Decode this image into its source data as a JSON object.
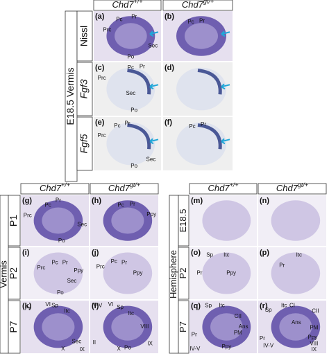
{
  "header": {
    "gene": "Chd7",
    "genotypes": [
      "+/+",
      "gt/+"
    ]
  },
  "top": {
    "group": "E18.5 Vermis",
    "rows": [
      "Nissl",
      "Fgf3",
      "Fgf5"
    ]
  },
  "bottom_left": {
    "group": "Vermis",
    "rows": [
      "P1",
      "P2",
      "P7"
    ]
  },
  "bottom_right": {
    "group": "Hemisphere",
    "rows": [
      "E18.5",
      "P2",
      "P7"
    ]
  },
  "panels": [
    {
      "letter": "(a)",
      "annotations": [
        "Pc",
        "Pr",
        "Prc",
        "Sec",
        "Po"
      ]
    },
    {
      "letter": "(b)",
      "annotations": [
        "Pc",
        "Pr"
      ]
    },
    {
      "letter": "(c)",
      "annotations": [
        "Pc",
        "Pr",
        "Prc",
        "Sec",
        "Po"
      ]
    },
    {
      "letter": "(d)",
      "annotations": []
    },
    {
      "letter": "(e)",
      "annotations": [
        "Pc",
        "Pr",
        "Prc",
        "Sec",
        "Po"
      ]
    },
    {
      "letter": "(f)",
      "annotations": [
        "Pc",
        "Pr"
      ]
    },
    {
      "letter": "(g)",
      "annotations": [
        "Pr",
        "Pc",
        "Prc",
        "Sec",
        "Po"
      ]
    },
    {
      "letter": "(h)",
      "annotations": [
        "Pc",
        "Pr",
        "Ppy"
      ]
    },
    {
      "letter": "(i)",
      "annotations": [
        "Pc",
        "Pr",
        "Prc",
        "Ppy",
        "Sec",
        "Po"
      ]
    },
    {
      "letter": "(j)",
      "annotations": [
        "Pc",
        "Pr",
        "Prc",
        "Ppy"
      ]
    },
    {
      "letter": "(k)",
      "annotations": [
        "Sp",
        "Itc",
        "VI",
        "Pr",
        "Sec",
        "X",
        "IX"
      ]
    },
    {
      "letter": "(l)",
      "annotations": [
        "IV-V",
        "VI",
        "Sp",
        "Itc",
        "VIII",
        "II",
        "IX",
        "Po",
        "X"
      ]
    },
    {
      "letter": "(m)",
      "annotations": []
    },
    {
      "letter": "(n)",
      "annotations": []
    },
    {
      "letter": "(o)",
      "annotations": [
        "Sp",
        "Itc",
        "Pr",
        "Ppy"
      ]
    },
    {
      "letter": "(p)",
      "annotations": [
        "Itc",
        "Pr"
      ]
    },
    {
      "letter": "(q)",
      "annotations": [
        "Sp",
        "Itc",
        "Ans",
        "CII",
        "PM",
        "Pr",
        "Ppy",
        "IV-V"
      ]
    },
    {
      "letter": "(r)",
      "annotations": [
        "Itc",
        "Sp",
        "CI",
        "CII",
        "Ans",
        "PM",
        "Pr",
        "Ppy",
        "VIII",
        "IV-V",
        "IX"
      ]
    }
  ]
}
